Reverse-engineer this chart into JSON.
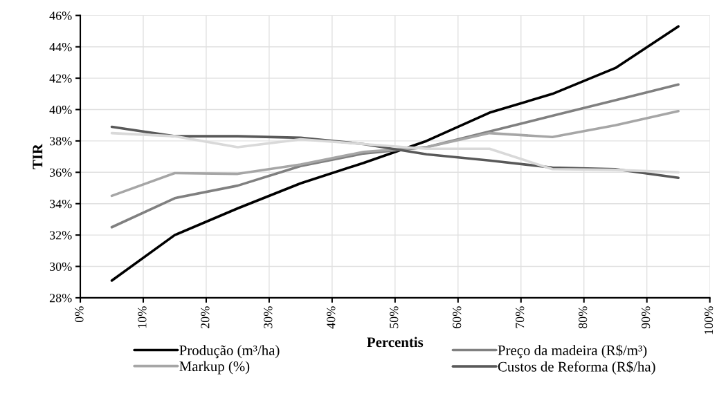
{
  "chart_data": {
    "type": "line",
    "xlabel": "Percentis",
    "ylabel": "TIR",
    "x": [
      5,
      15,
      25,
      35,
      45,
      55,
      65,
      75,
      85,
      95
    ],
    "series": [
      {
        "name": "Produção (m³/ha)",
        "color": "#000000",
        "values": [
          29.1,
          32.0,
          33.7,
          35.3,
          36.6,
          38.0,
          39.8,
          41.0,
          42.65,
          45.3
        ]
      },
      {
        "name": "Preço da madeira (R$/m³)",
        "color": "#808080",
        "values": [
          32.5,
          34.35,
          35.15,
          36.4,
          37.2,
          37.6,
          38.6,
          39.6,
          40.6,
          41.6
        ]
      },
      {
        "name": "Markup (%)",
        "color": "#a6a6a6",
        "values": [
          34.5,
          35.95,
          35.9,
          36.5,
          37.3,
          37.6,
          38.5,
          38.25,
          39.0,
          39.9
        ]
      },
      {
        "name": "Custos de Reforma (R$/ha)",
        "color": "#595959",
        "values": [
          38.9,
          38.3,
          38.3,
          38.2,
          37.8,
          37.15,
          36.75,
          36.3,
          36.2,
          35.65
        ]
      },
      {
        "color": "#d9d9d9",
        "values": [
          38.5,
          38.3,
          37.6,
          38.1,
          37.8,
          37.5,
          37.5,
          36.2,
          36.15,
          36.0
        ]
      }
    ],
    "xlim": [
      0,
      100
    ],
    "xticks": [
      {
        "value": 0,
        "label": "0%"
      },
      {
        "value": 10,
        "label": "10%"
      },
      {
        "value": 20,
        "label": "20%"
      },
      {
        "value": 30,
        "label": "30%"
      },
      {
        "value": 40,
        "label": "40%"
      },
      {
        "value": 50,
        "label": "50%"
      },
      {
        "value": 60,
        "label": "60%"
      },
      {
        "value": 70,
        "label": "70%"
      },
      {
        "value": 80,
        "label": "80%"
      },
      {
        "value": 90,
        "label": "90%"
      },
      {
        "value": 100,
        "label": "100%"
      }
    ],
    "ylim": [
      28,
      46
    ],
    "yticks": [
      {
        "value": 28,
        "label": "28%"
      },
      {
        "value": 30,
        "label": "30%"
      },
      {
        "value": 32,
        "label": "32%"
      },
      {
        "value": 34,
        "label": "34%"
      },
      {
        "value": 36,
        "label": "36%"
      },
      {
        "value": 38,
        "label": "38%"
      },
      {
        "value": 40,
        "label": "40%"
      },
      {
        "value": 42,
        "label": "42%"
      },
      {
        "value": 44,
        "label": "44%"
      },
      {
        "value": 46,
        "label": "46%"
      }
    ],
    "grid": true,
    "legend": "bottom",
    "marker": "none",
    "line_style": "solid"
  }
}
